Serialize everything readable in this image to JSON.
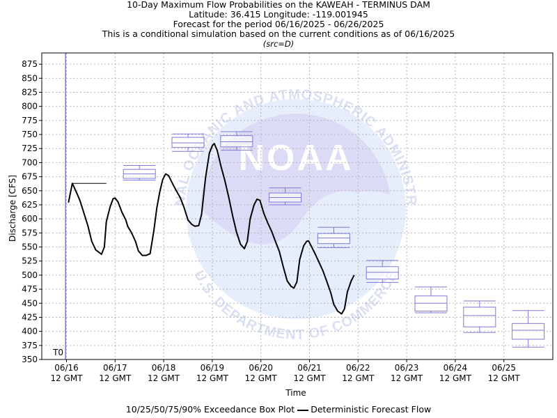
{
  "header": {
    "title": "10-Day Maximum Flow Probabilities on the KAWEAH - TERMINUS DAM",
    "location": "Latitude: 36.415 Longitude: -119.001945",
    "period": "Forecast for the period 06/16/2025 - 06/26/2025",
    "note": "This is a conditional simulation based on the current conditions as of 06/16/2025",
    "source": "(src=D)"
  },
  "watermark": {
    "logo_text": "NOAA",
    "ring_top": "NATIONAL OCEANIC AND ATMOSPHERIC ADMINISTRATION",
    "ring_bottom": "U.S. DEPARTMENT OF COMMERCE"
  },
  "chart_data": {
    "type": "line",
    "xlabel": "Time",
    "ylabel": "Discharge [CFS]",
    "ylim": [
      350,
      895
    ],
    "xlim": [
      -0.5,
      9.7
    ],
    "y_ticks": [
      350,
      375,
      400,
      425,
      450,
      475,
      500,
      525,
      550,
      575,
      600,
      625,
      650,
      675,
      700,
      725,
      750,
      775,
      800,
      825,
      850,
      875
    ],
    "x_ticks": [
      {
        "x": 0,
        "date": "06/16",
        "time": "12 GMT"
      },
      {
        "x": 1,
        "date": "06/17",
        "time": "12 GMT"
      },
      {
        "x": 2,
        "date": "06/18",
        "time": "12 GMT"
      },
      {
        "x": 3,
        "date": "06/19",
        "time": "12 GMT"
      },
      {
        "x": 4,
        "date": "06/20",
        "time": "12 GMT"
      },
      {
        "x": 5,
        "date": "06/21",
        "time": "12 GMT"
      },
      {
        "x": 6,
        "date": "06/22",
        "time": "12 GMT"
      },
      {
        "x": 7,
        "date": "06/23",
        "time": "12 GMT"
      },
      {
        "x": 8,
        "date": "06/24",
        "time": "12 GMT"
      },
      {
        "x": 9,
        "date": "06/25",
        "time": "12 GMT"
      }
    ],
    "t0_label": "T0",
    "t0_x": -0.02,
    "grid": true,
    "colors": {
      "line": "#000000",
      "box": "#7a7ad6",
      "t0": "#3333aa",
      "grid": "#b4b4b4"
    },
    "deterministic": {
      "name": "Deterministic Forecast Flow",
      "points": [
        [
          0.04,
          629
        ],
        [
          0.12,
          663
        ],
        [
          0.2,
          648
        ],
        [
          0.28,
          632
        ],
        [
          0.36,
          610
        ],
        [
          0.44,
          588
        ],
        [
          0.52,
          560
        ],
        [
          0.6,
          545
        ],
        [
          0.72,
          537
        ],
        [
          0.78,
          550
        ],
        [
          0.82,
          595
        ],
        [
          0.9,
          622
        ],
        [
          0.96,
          636
        ],
        [
          1.0,
          637
        ],
        [
          1.06,
          630
        ],
        [
          1.14,
          612
        ],
        [
          1.22,
          598
        ],
        [
          1.26,
          587
        ],
        [
          1.34,
          575
        ],
        [
          1.42,
          560
        ],
        [
          1.48,
          543
        ],
        [
          1.56,
          535
        ],
        [
          1.64,
          535
        ],
        [
          1.72,
          538
        ],
        [
          1.8,
          580
        ],
        [
          1.86,
          620
        ],
        [
          1.92,
          648
        ],
        [
          1.98,
          670
        ],
        [
          2.04,
          680
        ],
        [
          2.1,
          677
        ],
        [
          2.18,
          663
        ],
        [
          2.26,
          650
        ],
        [
          2.34,
          638
        ],
        [
          2.42,
          620
        ],
        [
          2.5,
          598
        ],
        [
          2.58,
          590
        ],
        [
          2.64,
          587
        ],
        [
          2.72,
          588
        ],
        [
          2.78,
          608
        ],
        [
          2.86,
          672
        ],
        [
          2.94,
          717
        ],
        [
          3.0,
          730
        ],
        [
          3.04,
          734
        ],
        [
          3.1,
          722
        ],
        [
          3.18,
          693
        ],
        [
          3.26,
          668
        ],
        [
          3.34,
          638
        ],
        [
          3.42,
          605
        ],
        [
          3.5,
          576
        ],
        [
          3.58,
          555
        ],
        [
          3.66,
          547
        ],
        [
          3.72,
          560
        ],
        [
          3.78,
          600
        ],
        [
          3.86,
          625
        ],
        [
          3.92,
          635
        ],
        [
          3.98,
          633
        ],
        [
          4.06,
          610
        ],
        [
          4.14,
          593
        ],
        [
          4.22,
          578
        ],
        [
          4.3,
          560
        ],
        [
          4.38,
          542
        ],
        [
          4.46,
          515
        ],
        [
          4.54,
          490
        ],
        [
          4.62,
          480
        ],
        [
          4.68,
          477
        ],
        [
          4.74,
          488
        ],
        [
          4.8,
          528
        ],
        [
          4.88,
          552
        ],
        [
          4.94,
          560
        ],
        [
          4.98,
          561
        ],
        [
          5.04,
          551
        ],
        [
          5.12,
          537
        ],
        [
          5.2,
          522
        ],
        [
          5.28,
          507
        ],
        [
          5.36,
          488
        ],
        [
          5.44,
          468
        ],
        [
          5.5,
          448
        ],
        [
          5.58,
          436
        ],
        [
          5.66,
          431
        ],
        [
          5.72,
          440
        ],
        [
          5.78,
          470
        ],
        [
          5.86,
          490
        ],
        [
          5.92,
          500
        ]
      ],
      "t0_marker": {
        "from": 0.12,
        "to": 0.82,
        "value": 663
      }
    },
    "boxes": {
      "name": "10/25/50/75/90% Exceedance Box Plot",
      "items": [
        {
          "x": 0.5,
          "p10": 662,
          "p25": 662,
          "p50": 662,
          "p75": 662,
          "p90": 662,
          "line_only": true
        },
        {
          "x": 1.5,
          "p10": 669,
          "p25": 672,
          "p50": 680,
          "p75": 688,
          "p90": 695
        },
        {
          "x": 2.5,
          "p10": 720,
          "p25": 727,
          "p50": 735,
          "p75": 745,
          "p90": 751
        },
        {
          "x": 3.5,
          "p10": 722,
          "p25": 728,
          "p50": 737,
          "p75": 748,
          "p90": 755
        },
        {
          "x": 4.5,
          "p10": 625,
          "p25": 630,
          "p50": 638,
          "p75": 646,
          "p90": 655
        },
        {
          "x": 5.5,
          "p10": 549,
          "p25": 556,
          "p50": 566,
          "p75": 574,
          "p90": 585
        },
        {
          "x": 6.5,
          "p10": 487,
          "p25": 493,
          "p50": 505,
          "p75": 515,
          "p90": 526
        },
        {
          "x": 7.5,
          "p10": 433,
          "p25": 436,
          "p50": 450,
          "p75": 463,
          "p90": 479
        },
        {
          "x": 8.5,
          "p10": 398,
          "p25": 408,
          "p50": 428,
          "p75": 443,
          "p90": 454
        },
        {
          "x": 9.5,
          "p10": 372,
          "p25": 386,
          "p50": 402,
          "p75": 414,
          "p90": 437
        }
      ]
    }
  }
}
